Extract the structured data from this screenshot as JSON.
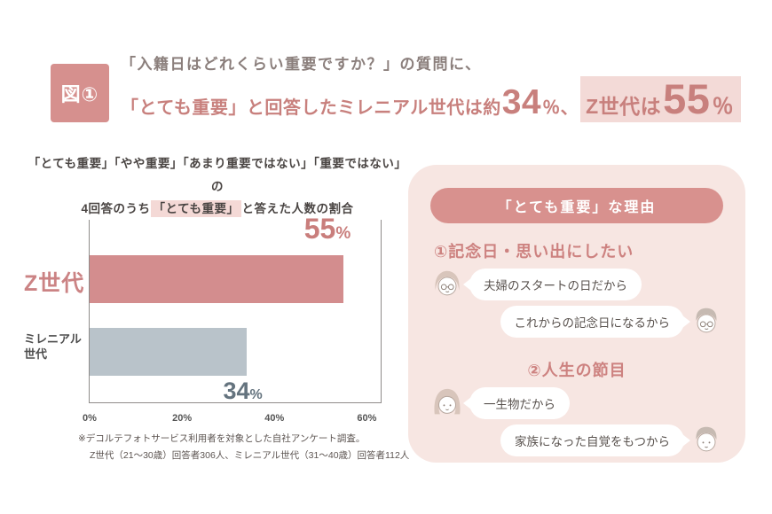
{
  "figure_badge": "図①",
  "header": {
    "line1": "「入籍日はどれくらい重要ですか？」の質問に、",
    "line2": {
      "pre": "「とても重要」と回答したミレニアル世代は約",
      "num1": "34",
      "pct1": "％",
      "comma": "、",
      "hl_pre": "Z世代は",
      "num2": "55",
      "pct2": "％"
    }
  },
  "chart_section": {
    "title_line1": "「とても重要」「やや重要」「あまり重要ではない」「重要ではない」の",
    "title_line2_pre": "4回答のうち",
    "title_line2_hl": "「とても重要」",
    "title_line2_post": "と答えた人数の割合",
    "footnote_line1": "※デコルテフォトサービス利用者を対象とした自社アンケート調査。",
    "footnote_line2": "Z世代（21〜30歳）回答者306人、ミレニアル世代（31〜40歳）回答者112人"
  },
  "chart_data": {
    "type": "bar",
    "orientation": "horizontal",
    "title": "4回答のうち「とても重要」と答えた人数の割合",
    "categories": [
      "Z世代",
      "ミレニアル世代"
    ],
    "values": [
      55,
      34
    ],
    "value_suffix": "%",
    "xlim": [
      0,
      60
    ],
    "xticks": [
      "0%",
      "20%",
      "40%",
      "60%"
    ],
    "bar_colors": [
      "#d38d8e",
      "#b9c3ca"
    ],
    "grid": "off",
    "legend": "none"
  },
  "reasons_card": {
    "pill_title": "「とても重要」な理由",
    "reasons": [
      {
        "heading": "①記念日・思い出にしたい",
        "bubbles": [
          {
            "text": "夫婦のスタートの日だから",
            "icon_side": "left",
            "icon": "woman-glasses-avatar-icon"
          },
          {
            "text": "これからの記念日になるから",
            "icon_side": "right",
            "icon": "man-glasses-avatar-icon"
          }
        ]
      },
      {
        "heading": "②人生の節目",
        "bubbles": [
          {
            "text": "一生物だから",
            "icon_side": "left",
            "icon": "woman-avatar-icon"
          },
          {
            "text": "家族になった自覚をもつから",
            "icon_side": "right",
            "icon": "man-avatar-icon"
          }
        ]
      }
    ]
  },
  "colors": {
    "accent_rose": "#c8807d",
    "badge_bg": "#d6908e",
    "header_highlight": "#f3dad7",
    "title_highlight": "#f4d9d6",
    "card_bg": "#f7e6e2",
    "pill_bg": "#d8918e",
    "bar_gen_z": "#d38d8e",
    "bar_millennial": "#b9c3ca",
    "value_label_z": "#c97e7c",
    "value_label_millennial": "#64737e",
    "text_dark": "#5c5451"
  }
}
